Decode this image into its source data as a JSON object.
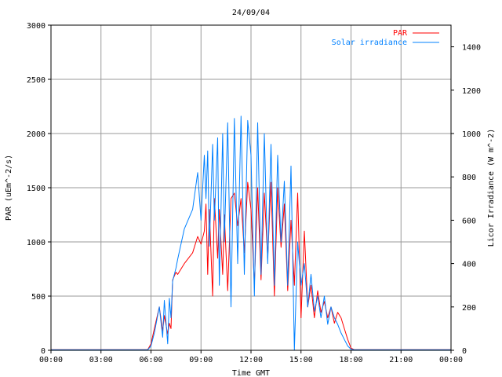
{
  "chart_data": {
    "type": "line",
    "title": "24/09/04",
    "xlabel": "Time GMT",
    "ylabel_left": "PAR (uEm^-2/s)",
    "ylabel_right": "Licor Irradiance (W m^-2)",
    "x_unit": "hours GMT",
    "xlim": [
      0,
      24
    ],
    "ylim_left": [
      0,
      3000
    ],
    "ylim_right": [
      0,
      1500
    ],
    "x_ticks": [
      "00:00",
      "03:00",
      "06:00",
      "09:00",
      "12:00",
      "15:00",
      "18:00",
      "21:00",
      "00:00"
    ],
    "y_ticks_left": [
      "0",
      "500",
      "1000",
      "1500",
      "2000",
      "2500",
      "3000"
    ],
    "y_ticks_right": [
      "0",
      "200",
      "400",
      "600",
      "800",
      "1000",
      "1200",
      "1400"
    ],
    "grid": true,
    "legend_position": "top-right",
    "colors": {
      "PAR": "#ff0000",
      "Solar irradiance": "#0080ff",
      "grid": "#999999",
      "frame": "#000000"
    },
    "series": [
      {
        "name": "PAR",
        "axis": "left",
        "x": [
          0,
          5.8,
          6.0,
          6.2,
          6.5,
          6.7,
          6.8,
          7.0,
          7.1,
          7.2,
          7.3,
          7.5,
          7.6,
          8.0,
          8.5,
          8.8,
          9.0,
          9.2,
          9.3,
          9.4,
          9.5,
          9.7,
          9.8,
          10.0,
          10.1,
          10.3,
          10.4,
          10.6,
          10.8,
          11.0,
          11.2,
          11.4,
          11.6,
          11.8,
          12.0,
          12.2,
          12.4,
          12.6,
          12.8,
          13.0,
          13.2,
          13.4,
          13.6,
          13.8,
          14.0,
          14.2,
          14.4,
          14.6,
          14.8,
          15.0,
          15.2,
          15.4,
          15.6,
          15.8,
          16.0,
          16.2,
          16.4,
          16.6,
          16.8,
          17.0,
          17.2,
          17.4,
          17.6,
          17.8,
          18.0,
          18.2,
          24
        ],
        "y": [
          5,
          5,
          60,
          200,
          400,
          180,
          320,
          150,
          250,
          200,
          650,
          720,
          700,
          800,
          900,
          1050,
          980,
          1100,
          1350,
          700,
          1300,
          500,
          1400,
          850,
          1300,
          700,
          1250,
          550,
          1400,
          1450,
          1150,
          1400,
          900,
          1550,
          1300,
          600,
          1500,
          650,
          1450,
          850,
          1550,
          500,
          1500,
          950,
          1350,
          550,
          1200,
          600,
          1450,
          300,
          1100,
          400,
          600,
          300,
          550,
          350,
          450,
          300,
          400,
          250,
          350,
          300,
          200,
          100,
          20,
          5,
          5
        ]
      },
      {
        "name": "Solar irradiance",
        "axis": "right",
        "x": [
          0,
          5.8,
          6.0,
          6.2,
          6.5,
          6.7,
          6.8,
          7.0,
          7.1,
          7.2,
          7.3,
          7.5,
          7.6,
          8.0,
          8.5,
          8.8,
          9.0,
          9.2,
          9.3,
          9.4,
          9.5,
          9.7,
          9.8,
          10.0,
          10.1,
          10.3,
          10.4,
          10.6,
          10.8,
          11.0,
          11.2,
          11.4,
          11.6,
          11.8,
          12.0,
          12.2,
          12.4,
          12.6,
          12.8,
          13.0,
          13.2,
          13.4,
          13.6,
          13.8,
          14.0,
          14.2,
          14.4,
          14.6,
          14.8,
          15.0,
          15.2,
          15.4,
          15.6,
          15.8,
          16.0,
          16.2,
          16.4,
          16.6,
          16.8,
          17.0,
          17.2,
          17.4,
          17.6,
          17.8,
          18.0,
          18.2,
          24
        ],
        "y": [
          2,
          2,
          20,
          80,
          200,
          60,
          230,
          30,
          240,
          150,
          320,
          380,
          420,
          560,
          650,
          820,
          600,
          900,
          700,
          920,
          480,
          950,
          600,
          980,
          300,
          1000,
          500,
          1050,
          200,
          1070,
          400,
          1080,
          350,
          1060,
          900,
          250,
          1050,
          350,
          1000,
          400,
          950,
          300,
          900,
          500,
          780,
          300,
          850,
          0,
          500,
          300,
          400,
          200,
          350,
          180,
          250,
          150,
          250,
          120,
          200,
          150,
          120,
          80,
          50,
          20,
          5,
          2,
          2
        ]
      }
    ]
  }
}
